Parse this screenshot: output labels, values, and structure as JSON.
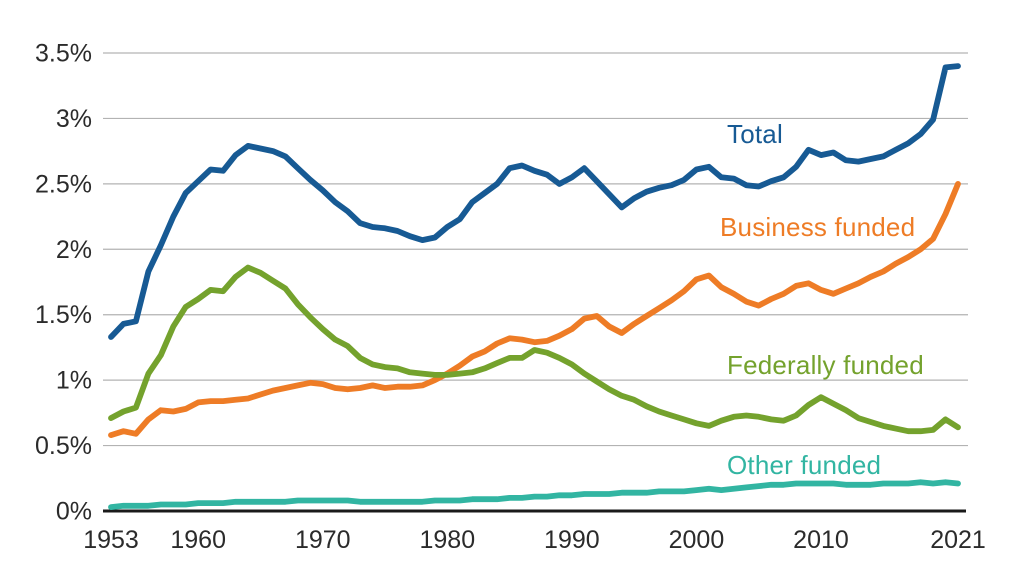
{
  "chart_data": {
    "type": "line",
    "title": "",
    "ylabel": "",
    "xlabel": "",
    "xlim": [
      1953,
      2021
    ],
    "ylim": [
      0,
      3.5
    ],
    "grid": true,
    "legend_position": "inline-right-of-plot",
    "y_tick_labels": [
      "0%",
      "0.5%",
      "1%",
      "1.5%",
      "2%",
      "2.5%",
      "3%",
      "3.5%"
    ],
    "y_tick_values": [
      0,
      0.5,
      1,
      1.5,
      2,
      2.5,
      3,
      3.5
    ],
    "x_tick_labels": [
      "1953",
      "1960",
      "1970",
      "1980",
      "1990",
      "2000",
      "2010",
      "2021"
    ],
    "x_tick_values": [
      1953,
      1960,
      1970,
      1980,
      1990,
      2000,
      2010,
      2021
    ],
    "x": [
      1953,
      1954,
      1955,
      1956,
      1957,
      1958,
      1959,
      1960,
      1961,
      1962,
      1963,
      1964,
      1965,
      1966,
      1967,
      1968,
      1969,
      1970,
      1971,
      1972,
      1973,
      1974,
      1975,
      1976,
      1977,
      1978,
      1979,
      1980,
      1981,
      1982,
      1983,
      1984,
      1985,
      1986,
      1987,
      1988,
      1989,
      1990,
      1991,
      1992,
      1993,
      1994,
      1995,
      1996,
      1997,
      1998,
      1999,
      2000,
      2001,
      2002,
      2003,
      2004,
      2005,
      2006,
      2007,
      2008,
      2009,
      2010,
      2011,
      2012,
      2013,
      2014,
      2015,
      2016,
      2017,
      2018,
      2019,
      2020,
      2021
    ],
    "series": [
      {
        "name": "Total",
        "color": "#175A94",
        "values": [
          1.33,
          1.43,
          1.45,
          1.83,
          2.03,
          2.25,
          2.43,
          2.52,
          2.61,
          2.6,
          2.72,
          2.79,
          2.77,
          2.75,
          2.71,
          2.62,
          2.53,
          2.45,
          2.36,
          2.29,
          2.2,
          2.17,
          2.16,
          2.14,
          2.1,
          2.07,
          2.09,
          2.17,
          2.23,
          2.36,
          2.43,
          2.5,
          2.62,
          2.64,
          2.6,
          2.57,
          2.5,
          2.55,
          2.62,
          2.52,
          2.42,
          2.32,
          2.39,
          2.44,
          2.47,
          2.49,
          2.53,
          2.61,
          2.63,
          2.55,
          2.54,
          2.49,
          2.48,
          2.52,
          2.55,
          2.63,
          2.76,
          2.72,
          2.74,
          2.68,
          2.67,
          2.69,
          2.71,
          2.76,
          2.81,
          2.88,
          2.99,
          3.39,
          3.4
        ]
      },
      {
        "name": "Business funded",
        "color": "#EE7C26",
        "values": [
          0.58,
          0.61,
          0.59,
          0.7,
          0.77,
          0.76,
          0.78,
          0.83,
          0.84,
          0.84,
          0.85,
          0.86,
          0.89,
          0.92,
          0.94,
          0.96,
          0.98,
          0.97,
          0.94,
          0.93,
          0.94,
          0.96,
          0.94,
          0.95,
          0.95,
          0.96,
          1.0,
          1.05,
          1.11,
          1.18,
          1.22,
          1.28,
          1.32,
          1.31,
          1.29,
          1.3,
          1.34,
          1.39,
          1.47,
          1.49,
          1.41,
          1.36,
          1.43,
          1.49,
          1.55,
          1.61,
          1.68,
          1.77,
          1.8,
          1.71,
          1.66,
          1.6,
          1.57,
          1.62,
          1.66,
          1.72,
          1.74,
          1.69,
          1.66,
          1.7,
          1.74,
          1.79,
          1.83,
          1.89,
          1.94,
          2.0,
          2.08,
          2.27,
          2.5
        ]
      },
      {
        "name": "Federally funded",
        "color": "#74A22D",
        "values": [
          0.71,
          0.76,
          0.79,
          1.05,
          1.19,
          1.41,
          1.56,
          1.62,
          1.69,
          1.68,
          1.79,
          1.86,
          1.82,
          1.76,
          1.7,
          1.58,
          1.48,
          1.39,
          1.31,
          1.26,
          1.17,
          1.12,
          1.1,
          1.09,
          1.06,
          1.05,
          1.04,
          1.04,
          1.05,
          1.06,
          1.09,
          1.13,
          1.17,
          1.17,
          1.23,
          1.21,
          1.17,
          1.12,
          1.05,
          0.99,
          0.93,
          0.88,
          0.85,
          0.8,
          0.76,
          0.73,
          0.7,
          0.67,
          0.65,
          0.69,
          0.72,
          0.73,
          0.72,
          0.7,
          0.69,
          0.73,
          0.81,
          0.87,
          0.82,
          0.77,
          0.71,
          0.68,
          0.65,
          0.63,
          0.61,
          0.61,
          0.62,
          0.7,
          0.64
        ]
      },
      {
        "name": "Other funded",
        "color": "#32B5A2",
        "values": [
          0.03,
          0.04,
          0.04,
          0.04,
          0.05,
          0.05,
          0.05,
          0.06,
          0.06,
          0.06,
          0.07,
          0.07,
          0.07,
          0.07,
          0.07,
          0.08,
          0.08,
          0.08,
          0.08,
          0.08,
          0.07,
          0.07,
          0.07,
          0.07,
          0.07,
          0.07,
          0.08,
          0.08,
          0.08,
          0.09,
          0.09,
          0.09,
          0.1,
          0.1,
          0.11,
          0.11,
          0.12,
          0.12,
          0.13,
          0.13,
          0.13,
          0.14,
          0.14,
          0.14,
          0.15,
          0.15,
          0.15,
          0.16,
          0.17,
          0.16,
          0.17,
          0.18,
          0.19,
          0.2,
          0.2,
          0.21,
          0.21,
          0.21,
          0.21,
          0.2,
          0.2,
          0.2,
          0.21,
          0.21,
          0.21,
          0.22,
          0.21,
          0.22,
          0.21
        ]
      }
    ],
    "colors": {
      "gridline": "#b3b3b3",
      "baseline_axis": "#1a1a1a",
      "tick_text": "#2b2b2b",
      "background": "#ffffff"
    }
  }
}
